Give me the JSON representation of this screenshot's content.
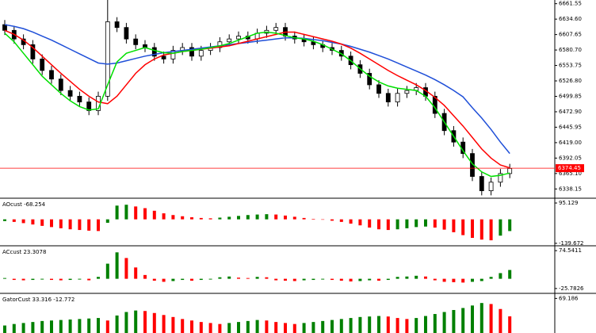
{
  "chart_data": [
    {
      "type": "candlestick",
      "open": [
        6625,
        6615,
        6600,
        6590,
        6565,
        6545,
        6530,
        6510,
        6500,
        6490,
        6475,
        6500,
        6630,
        6620,
        6600,
        6590,
        6585,
        6570,
        6565,
        6580,
        6585,
        6570,
        6580,
        6585,
        6595,
        6600,
        6605,
        6600,
        6610,
        6615,
        6620,
        6605,
        6600,
        6595,
        6590,
        6585,
        6580,
        6570,
        6555,
        6540,
        6520,
        6505,
        6490,
        6505,
        6510,
        6515,
        6500,
        6470,
        6440,
        6420,
        6400,
        6360,
        6335,
        6350,
        6365
      ],
      "high": [
        6633,
        6623,
        6608,
        6598,
        6573,
        6553,
        6538,
        6518,
        6508,
        6498,
        6508,
        6668,
        6638,
        6628,
        6608,
        6598,
        6593,
        6578,
        6588,
        6593,
        6593,
        6588,
        6593,
        6603,
        6608,
        6613,
        6613,
        6618,
        6623,
        6628,
        6628,
        6613,
        6608,
        6603,
        6598,
        6593,
        6588,
        6578,
        6563,
        6548,
        6528,
        6513,
        6513,
        6518,
        6523,
        6523,
        6508,
        6478,
        6448,
        6428,
        6408,
        6368,
        6358,
        6373,
        6382
      ],
      "low": [
        6607,
        6592,
        6582,
        6557,
        6537,
        6522,
        6502,
        6492,
        6482,
        6467,
        6467,
        6492,
        6612,
        6592,
        6582,
        6577,
        6562,
        6557,
        6557,
        6572,
        6562,
        6562,
        6572,
        6577,
        6587,
        6592,
        6592,
        6592,
        6602,
        6607,
        6597,
        6592,
        6587,
        6582,
        6577,
        6572,
        6562,
        6547,
        6532,
        6512,
        6497,
        6482,
        6482,
        6497,
        6502,
        6492,
        6462,
        6432,
        6412,
        6392,
        6352,
        6327,
        6327,
        6342,
        6357
      ],
      "close": [
        6615,
        6600,
        6590,
        6565,
        6545,
        6530,
        6510,
        6500,
        6490,
        6475,
        6500,
        6630,
        6620,
        6600,
        6590,
        6585,
        6570,
        6565,
        6580,
        6585,
        6570,
        6580,
        6585,
        6595,
        6600,
        6605,
        6600,
        6610,
        6615,
        6620,
        6605,
        6600,
        6595,
        6590,
        6585,
        6580,
        6570,
        6555,
        6540,
        6520,
        6505,
        6490,
        6505,
        6510,
        6515,
        6500,
        6470,
        6440,
        6420,
        6400,
        6360,
        6335,
        6350,
        6365,
        6374
      ],
      "up_color": "#ffffff",
      "down_color": "#000000",
      "series": [
        {
          "color": "#1f4fd8",
          "values": [
            6625,
            6622,
            6618,
            6612,
            6605,
            6598,
            6590,
            6582,
            6574,
            6566,
            6558,
            6556,
            6558,
            6562,
            6566,
            6570,
            6573,
            6576,
            6578,
            6580,
            6582,
            6584,
            6586,
            6588,
            6590,
            6592,
            6594,
            6596,
            6598,
            6600,
            6602,
            6602,
            6601,
            6599,
            6597,
            6594,
            6591,
            6587,
            6582,
            6577,
            6571,
            6565,
            6558,
            6551,
            6544,
            6537,
            6529,
            6520,
            6510,
            6499,
            6480,
            6462,
            6442,
            6420,
            6400
          ]
        },
        {
          "color": "#ff0000",
          "values": [
            6615,
            6608,
            6598,
            6585,
            6570,
            6555,
            6540,
            6526,
            6512,
            6500,
            6490,
            6487,
            6500,
            6520,
            6540,
            6555,
            6565,
            6572,
            6575,
            6578,
            6580,
            6582,
            6584,
            6586,
            6588,
            6592,
            6596,
            6600,
            6604,
            6608,
            6612,
            6612,
            6608,
            6604,
            6600,
            6596,
            6591,
            6584,
            6575,
            6565,
            6555,
            6545,
            6536,
            6528,
            6520,
            6510,
            6498,
            6484,
            6466,
            6448,
            6428,
            6408,
            6392,
            6380,
            6375
          ]
        },
        {
          "color": "#00e000",
          "values": [
            6610,
            6595,
            6575,
            6555,
            6535,
            6520,
            6505,
            6492,
            6482,
            6476,
            6478,
            6520,
            6560,
            6575,
            6580,
            6585,
            6580,
            6576,
            6575,
            6578,
            6580,
            6582,
            6585,
            6588,
            6592,
            6598,
            6604,
            6610,
            6612,
            6610,
            6606,
            6602,
            6600,
            6596,
            6590,
            6582,
            6574,
            6562,
            6548,
            6535,
            6525,
            6518,
            6514,
            6512,
            6510,
            6500,
            6480,
            6455,
            6430,
            6405,
            6382,
            6368,
            6360,
            6362,
            6366
          ]
        }
      ],
      "current_price": 6374.45,
      "price_color": "#ff0000",
      "ylim": [
        6322,
        6668
      ],
      "yticks": [
        6661.55,
        {
          "value": 6634.6,
          "label": "6634.60"
        },
        6607.65,
        {
          "value": 6580.7,
          "label": "6580.70"
        },
        6553.75,
        {
          "value": 6526.8,
          "label": "6526.80"
        },
        6499.85,
        {
          "value": 6472.9,
          "label": "6472.90"
        },
        6445.95,
        {
          "value": 6419,
          "label": "6419.00"
        },
        6392.05,
        {
          "value": 6365.1,
          "label": "6365.10"
        },
        6338.15
      ]
    },
    {
      "type": "bar",
      "title": "AOcust -68.254",
      "up_color": "#008000",
      "down_color": "#ff0000",
      "values": [
        -10,
        -15,
        -22,
        -30,
        -38,
        -45,
        -52,
        -58,
        -62,
        -66,
        -68,
        -20,
        80,
        85,
        75,
        65,
        50,
        35,
        25,
        18,
        12,
        8,
        6,
        10,
        15,
        20,
        25,
        28,
        30,
        28,
        22,
        15,
        8,
        3,
        -2,
        -8,
        -15,
        -25,
        -35,
        -48,
        -58,
        -62,
        -58,
        -52,
        -45,
        -42,
        -48,
        -60,
        -75,
        -92,
        -108,
        -118,
        -122,
        -95,
        -68.254
      ],
      "ylim": [
        -154,
        123
      ],
      "yticks": [
        95.129,
        -139.672
      ]
    },
    {
      "type": "bar",
      "title": "ACcust 23.3078",
      "up_color": "#008000",
      "down_color": "#ff0000",
      "values": [
        2,
        -3,
        -4,
        -3,
        -2,
        -3,
        -4,
        -3,
        -2,
        -4,
        5,
        40,
        70,
        55,
        30,
        10,
        -5,
        -8,
        -6,
        -3,
        -5,
        -3,
        -2,
        4,
        6,
        3,
        2,
        5,
        4,
        -4,
        -5,
        -6,
        -4,
        -3,
        -2,
        -3,
        -5,
        -7,
        -6,
        -4,
        -5,
        -3,
        5,
        6,
        8,
        6,
        -4,
        -8,
        -9,
        -10,
        -8,
        -6,
        5,
        15,
        23.3078
      ],
      "ylim": [
        -38.6,
        87.4
      ],
      "yticks": [
        74.5411,
        -25.7826
      ]
    },
    {
      "type": "bar",
      "title": "GatorCust 33.316 -12.772",
      "up_color": "#008000",
      "down_color": "#ff0000",
      "values": [
        15,
        18,
        20,
        22,
        24,
        25,
        26,
        27,
        28,
        29,
        30,
        25,
        35,
        42,
        45,
        44,
        40,
        36,
        32,
        28,
        25,
        22,
        20,
        18,
        20,
        22,
        24,
        26,
        25,
        22,
        20,
        18,
        20,
        22,
        24,
        26,
        28,
        30,
        32,
        33,
        34,
        33,
        30,
        28,
        30,
        34,
        38,
        42,
        46,
        50,
        55,
        60,
        58,
        48,
        33.316
      ],
      "ylim": [
        0,
        79.3
      ],
      "yticks": [
        69.186
      ]
    }
  ]
}
